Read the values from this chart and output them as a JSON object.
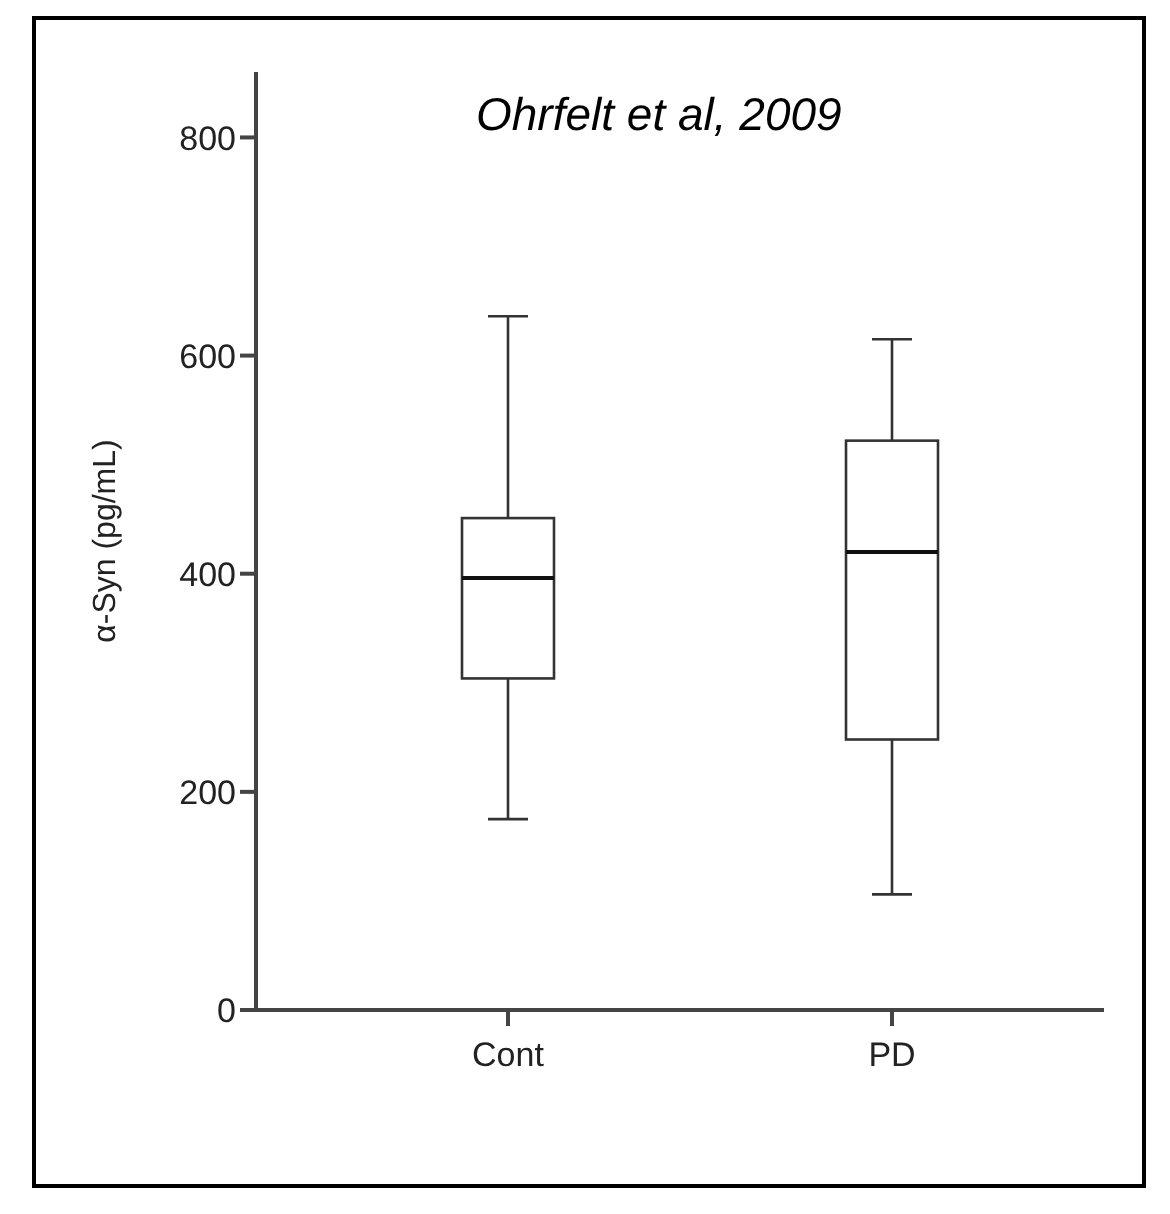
{
  "chart_data": {
    "type": "box",
    "annotations": [
      "Ohrfelt et al, 2009"
    ],
    "ylabel": "α-Syn (pg/mL)",
    "categories": [
      "Cont",
      "PD"
    ],
    "color": "#333333",
    "boxes": [
      {
        "low": 175,
        "q1": 304,
        "median": 396,
        "q3": 451,
        "high": 636
      },
      {
        "low": 106,
        "q1": 248,
        "median": 420,
        "q3": 522,
        "high": 615
      }
    ],
    "ylim": [
      0,
      860
    ],
    "yticks": [
      0,
      200,
      400,
      600,
      800
    ],
    "grid": false
  }
}
